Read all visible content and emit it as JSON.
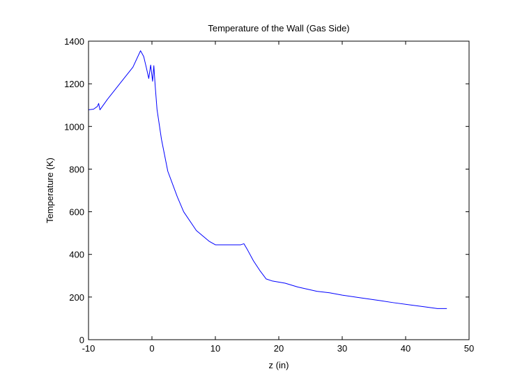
{
  "chart_data": {
    "type": "line",
    "title": "Temperature of the Wall (Gas Side)",
    "xlabel": "z (in)",
    "ylabel": "Temperature (K)",
    "xlim": [
      -10,
      50
    ],
    "ylim": [
      0,
      1400
    ],
    "xticks": [
      -10,
      0,
      10,
      20,
      30,
      40,
      50
    ],
    "yticks": [
      0,
      200,
      400,
      600,
      800,
      1000,
      1200,
      1400
    ],
    "grid": false,
    "legend": "none",
    "series": [
      {
        "color": "#0000ff",
        "x": [
          -10,
          -9.2,
          -8.6,
          -8.4,
          -8.2,
          -7.0,
          -5.0,
          -3.0,
          -1.8,
          -1.3,
          -0.9,
          -0.5,
          -0.2,
          0.1,
          0.3,
          0.5,
          0.8,
          1.5,
          2.5,
          4.0,
          5.0,
          7.0,
          8.0,
          9.0,
          10.0,
          12.0,
          14.0,
          14.5,
          15.0,
          16.0,
          17.0,
          18.0,
          19.0,
          21.0,
          23.0,
          26.0,
          28.0,
          30.0,
          33.0,
          36.0,
          38.0,
          41.0,
          43.0,
          45.0,
          46.5
        ],
        "y": [
          1078,
          1081,
          1094,
          1108,
          1078,
          1128,
          1203,
          1278,
          1355,
          1328,
          1278,
          1225,
          1288,
          1212,
          1285,
          1195,
          1080,
          940,
          790,
          670,
          600,
          512,
          487,
          462,
          445,
          445,
          445,
          450,
          425,
          370,
          325,
          285,
          275,
          265,
          247,
          227,
          220,
          209,
          196,
          183,
          174,
          162,
          154,
          146,
          146
        ]
      }
    ]
  }
}
